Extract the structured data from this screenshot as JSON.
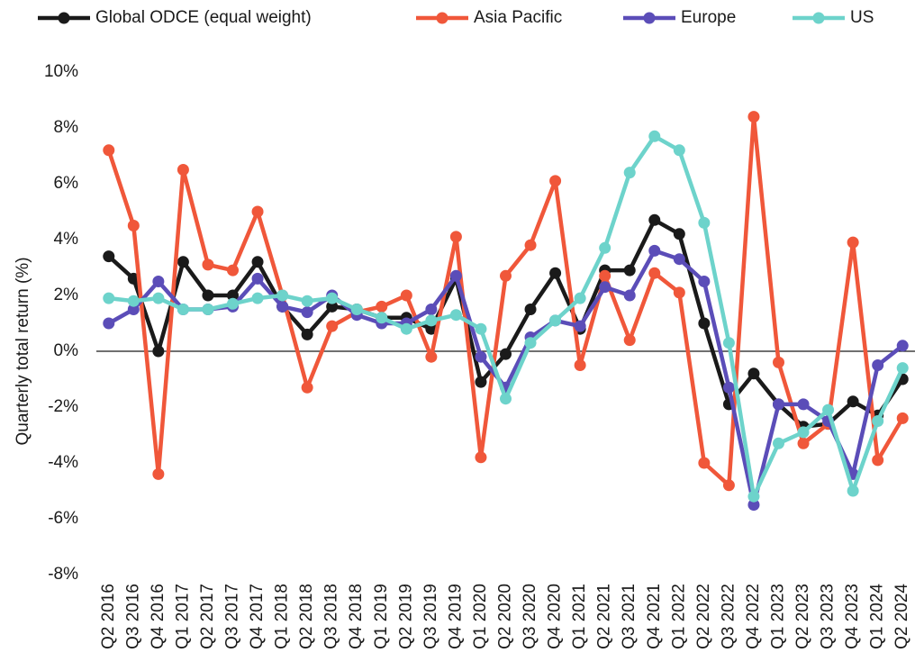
{
  "chart_data": {
    "type": "line",
    "y_label": "Quarterly total return (%)",
    "categories": [
      "Q2 2016",
      "Q3 2016",
      "Q4 2016",
      "Q1 2017",
      "Q2 2017",
      "Q3 2017",
      "Q4 2017",
      "Q1 2018",
      "Q2 2018",
      "Q3 2018",
      "Q4 2018",
      "Q1 2019",
      "Q2 2019",
      "Q3 2019",
      "Q4 2019",
      "Q1 2020",
      "Q2 2020",
      "Q3 2020",
      "Q4 2020",
      "Q1 2021",
      "Q2 2021",
      "Q3 2021",
      "Q4 2021",
      "Q1 2022",
      "Q2 2022",
      "Q3 2022",
      "Q4 2022",
      "Q1 2023",
      "Q2 2023",
      "Q3 2023",
      "Q4 2023",
      "Q1 2024",
      "Q2 2024"
    ],
    "series": [
      {
        "name": "Global ODCE (equal weight)",
        "color": "#1a1a1a",
        "values": [
          3.4,
          2.6,
          0.0,
          3.2,
          2.0,
          2.0,
          3.2,
          1.6,
          0.6,
          1.6,
          1.5,
          1.2,
          1.2,
          0.8,
          2.6,
          -1.1,
          -0.1,
          1.5,
          2.8,
          0.8,
          2.9,
          2.9,
          4.7,
          4.2,
          1.0,
          -1.9,
          -0.8,
          -1.9,
          -2.7,
          -2.6,
          -1.8,
          -2.3,
          -1.0
        ]
      },
      {
        "name": "Asia Pacific",
        "color": "#f0573a",
        "values": [
          7.2,
          4.5,
          -4.4,
          6.5,
          3.1,
          2.9,
          5.0,
          2.0,
          -1.3,
          0.9,
          1.4,
          1.6,
          2.0,
          -0.2,
          4.1,
          -3.8,
          2.7,
          3.8,
          6.1,
          -0.5,
          2.7,
          0.4,
          2.8,
          2.1,
          -4.0,
          -4.8,
          8.4,
          -0.4,
          -3.3,
          -2.6,
          3.9,
          -3.9,
          -2.4
        ]
      },
      {
        "name": "Europe",
        "color": "#5b4db8",
        "values": [
          1.0,
          1.5,
          2.5,
          1.5,
          1.5,
          1.6,
          2.6,
          1.6,
          1.4,
          2.0,
          1.3,
          1.0,
          1.0,
          1.5,
          2.7,
          -0.2,
          -1.3,
          0.5,
          1.1,
          0.9,
          2.3,
          2.0,
          3.6,
          3.3,
          2.5,
          -1.3,
          -5.5,
          -1.9,
          -1.9,
          -2.5,
          -4.4,
          -0.5,
          0.2
        ]
      },
      {
        "name": "US",
        "color": "#6dd3cb",
        "values": [
          1.9,
          1.8,
          1.9,
          1.5,
          1.5,
          1.7,
          1.9,
          2.0,
          1.8,
          1.9,
          1.5,
          1.2,
          0.8,
          1.1,
          1.3,
          0.8,
          -1.7,
          0.3,
          1.1,
          1.9,
          3.7,
          6.4,
          7.7,
          7.2,
          4.6,
          0.3,
          -5.2,
          -3.3,
          -2.9,
          -2.1,
          -5.0,
          -2.5,
          -0.6
        ]
      }
    ],
    "ylim": [
      -8,
      10
    ],
    "yticks": [
      {
        "value": -8,
        "label": "-8%"
      },
      {
        "value": -6,
        "label": "-6%"
      },
      {
        "value": -4,
        "label": "-4%"
      },
      {
        "value": -2,
        "label": "-2%"
      },
      {
        "value": 0,
        "label": "0%"
      },
      {
        "value": 2,
        "label": "2%"
      },
      {
        "value": 4,
        "label": "4%"
      },
      {
        "value": 6,
        "label": "6%"
      },
      {
        "value": 8,
        "label": "8%"
      },
      {
        "value": 10,
        "label": "10%"
      }
    ],
    "zero_line": true,
    "grid": false,
    "legend": "top"
  }
}
